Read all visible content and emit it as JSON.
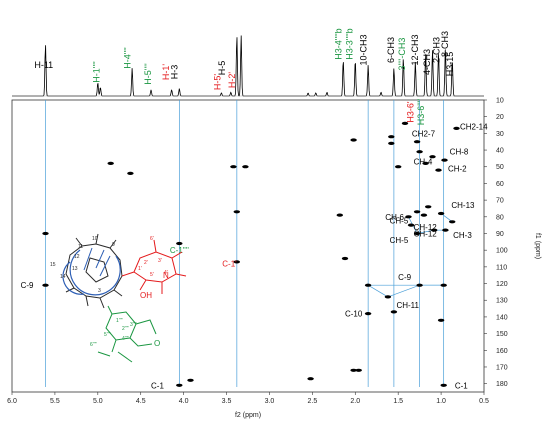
{
  "chart_data": {
    "type": "scatter",
    "title": "",
    "xlabel": "f2 (ppm)",
    "ylabel": "f1 (ppm)",
    "xlim": [
      6.0,
      0.5
    ],
    "ylim": [
      10,
      185
    ],
    "x_ticks": [
      "6.0",
      "5.5",
      "5.0",
      "4.5",
      "4.0",
      "3.5",
      "3.0",
      "2.5",
      "2.0",
      "1.5",
      "1.0",
      "0.5"
    ],
    "y_ticks": [
      "10",
      "20",
      "30",
      "40",
      "50",
      "60",
      "70",
      "80",
      "90",
      "100",
      "110",
      "120",
      "130",
      "140",
      "150",
      "160",
      "170",
      "180"
    ],
    "colors": {
      "black": "#000000",
      "red": "#e41a1c",
      "green": "#1a9641",
      "link": "#2e86c1",
      "lines": "#4a9fd8"
    },
    "proton_peaks": [
      {
        "x": 5.61,
        "h": 0.83
      },
      {
        "x": 5.0,
        "h": 0.22
      },
      {
        "x": 4.97,
        "h": 0.14
      },
      {
        "x": 4.6,
        "h": 0.45
      },
      {
        "x": 4.38,
        "h": 0.1
      },
      {
        "x": 4.14,
        "h": 0.1
      },
      {
        "x": 4.05,
        "h": 0.12
      },
      {
        "x": 3.56,
        "h": 0.05
      },
      {
        "x": 3.45,
        "h": 0.06
      },
      {
        "x": 3.38,
        "h": 0.98
      },
      {
        "x": 3.33,
        "h": 0.98
      },
      {
        "x": 2.55,
        "h": 0.05
      },
      {
        "x": 2.46,
        "h": 0.05
      },
      {
        "x": 2.33,
        "h": 0.06
      },
      {
        "x": 2.14,
        "h": 0.58
      },
      {
        "x": 2.0,
        "h": 0.58
      },
      {
        "x": 1.85,
        "h": 0.5
      },
      {
        "x": 1.7,
        "h": 0.06
      },
      {
        "x": 1.55,
        "h": 0.45
      },
      {
        "x": 1.44,
        "h": 0.6
      },
      {
        "x": 1.3,
        "h": 0.55
      },
      {
        "x": 1.18,
        "h": 0.7
      },
      {
        "x": 1.1,
        "h": 0.75
      },
      {
        "x": 1.03,
        "h": 0.7
      },
      {
        "x": 0.95,
        "h": 0.78
      },
      {
        "x": 0.87,
        "h": 0.6
      }
    ],
    "cross_peaks": [
      {
        "x": 5.61,
        "y": 90
      },
      {
        "x": 5.61,
        "y": 121
      },
      {
        "x": 4.85,
        "y": 48
      },
      {
        "x": 4.62,
        "y": 54
      },
      {
        "x": 4.05,
        "y": 96
      },
      {
        "x": 4.05,
        "y": 181
      },
      {
        "x": 3.42,
        "y": 50
      },
      {
        "x": 3.28,
        "y": 50
      },
      {
        "x": 3.38,
        "y": 77
      },
      {
        "x": 3.38,
        "y": 107
      },
      {
        "x": 2.02,
        "y": 34
      },
      {
        "x": 1.58,
        "y": 32
      },
      {
        "x": 1.58,
        "y": 36
      },
      {
        "x": 1.42,
        "y": 24
      },
      {
        "x": 1.5,
        "y": 50
      },
      {
        "x": 1.28,
        "y": 35
      },
      {
        "x": 1.25,
        "y": 41
      },
      {
        "x": 1.18,
        "y": 48
      },
      {
        "x": 1.1,
        "y": 44
      },
      {
        "x": 1.03,
        "y": 52
      },
      {
        "x": 0.96,
        "y": 46
      },
      {
        "x": 0.82,
        "y": 27
      },
      {
        "x": 1.15,
        "y": 74
      },
      {
        "x": 1.28,
        "y": 77
      },
      {
        "x": 1.2,
        "y": 79
      },
      {
        "x": 1.35,
        "y": 85
      },
      {
        "x": 1.28,
        "y": 90
      },
      {
        "x": 1.08,
        "y": 88
      },
      {
        "x": 1.38,
        "y": 80
      },
      {
        "x": 1.0,
        "y": 78
      },
      {
        "x": 0.95,
        "y": 88
      },
      {
        "x": 0.87,
        "y": 83
      },
      {
        "x": 1.85,
        "y": 121
      },
      {
        "x": 1.85,
        "y": 138
      },
      {
        "x": 1.25,
        "y": 121
      },
      {
        "x": 1.62,
        "y": 128
      },
      {
        "x": 0.97,
        "y": 121
      },
      {
        "x": 0.97,
        "y": 181
      },
      {
        "x": 1.0,
        "y": 142
      },
      {
        "x": 2.18,
        "y": 79
      },
      {
        "x": 2.02,
        "y": 172
      },
      {
        "x": 1.96,
        "y": 172
      },
      {
        "x": 1.55,
        "y": 137
      },
      {
        "x": 2.52,
        "y": 177
      },
      {
        "x": 3.92,
        "y": 178
      },
      {
        "x": 2.12,
        "y": 105
      }
    ],
    "top_annotations": [
      {
        "text": "H-11",
        "color": "black"
      },
      {
        "text": "H-1''''",
        "color": "green"
      },
      {
        "text": "H-4''''",
        "color": "green"
      },
      {
        "text": "H-5''''",
        "color": "green"
      },
      {
        "text": "H-1'",
        "color": "red"
      },
      {
        "text": "H-3",
        "color": "black"
      },
      {
        "text": "H-5'",
        "color": "red"
      },
      {
        "text": "H-2'",
        "color": "red"
      },
      {
        "text": "H-5",
        "color": "black"
      },
      {
        "text": "H3-4''''b",
        "color": "green"
      },
      {
        "text": "H3-3''''b",
        "color": "green"
      },
      {
        "text": "10-CH3",
        "color": "black"
      },
      {
        "text": "6-CH3",
        "color": "black"
      },
      {
        "text": "3''''-CH3",
        "color": "green"
      },
      {
        "text": "12-CH3",
        "color": "black"
      },
      {
        "text": "4-CH3",
        "color": "black"
      },
      {
        "text": "2-CH3",
        "color": "black"
      },
      {
        "text": "8-CH3",
        "color": "black"
      },
      {
        "text": "H3-15",
        "color": "black"
      },
      {
        "text": "H3-6'",
        "color": "red"
      },
      {
        "text": "H3-6''''",
        "color": "green"
      }
    ],
    "plot_annotations": [
      {
        "text": "CH2-14",
        "color": "black"
      },
      {
        "text": "CH2-7",
        "color": "black"
      },
      {
        "text": "CH-8",
        "color": "black"
      },
      {
        "text": "CH-4",
        "color": "black"
      },
      {
        "text": "CH-2",
        "color": "black"
      },
      {
        "text": "CH-13",
        "color": "black"
      },
      {
        "text": "CH-6",
        "color": "black"
      },
      {
        "text": "CH-3",
        "color": "black"
      },
      {
        "text": "CH-12",
        "color": "black"
      },
      {
        "text": "CH-5",
        "color": "black"
      },
      {
        "text": "CH-5",
        "color": "black"
      },
      {
        "text": "CH-12",
        "color": "black"
      },
      {
        "text": "C-1''''",
        "color": "green"
      },
      {
        "text": "C-1'",
        "color": "red"
      },
      {
        "text": "C-9",
        "color": "black"
      },
      {
        "text": "C-9",
        "color": "black"
      },
      {
        "text": "CH-11",
        "color": "black"
      },
      {
        "text": "C-10",
        "color": "black"
      },
      {
        "text": "C-1",
        "color": "black"
      },
      {
        "text": "C-1",
        "color": "black"
      }
    ],
    "grid": false,
    "legend": "none"
  },
  "molecule_labels": [
    "15",
    "14",
    "13",
    "12",
    "11",
    "10",
    "9",
    "3",
    "1'",
    "2'",
    "3'",
    "4'",
    "5'",
    "6'",
    "OH",
    "N",
    "1''''",
    "2''''",
    "3''''",
    "4''''",
    "5''''",
    "6''''",
    "O"
  ]
}
